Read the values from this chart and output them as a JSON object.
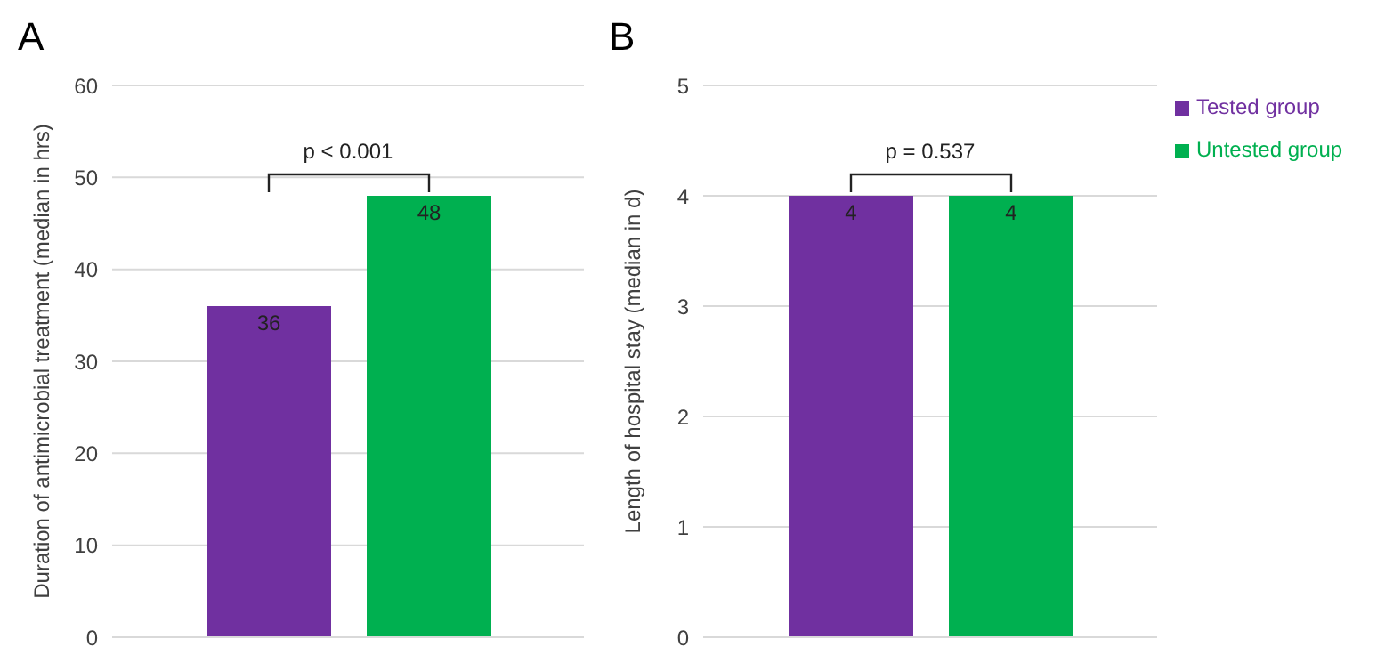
{
  "chart_data": [
    {
      "type": "bar",
      "title": "A",
      "ylabel": "Duration of antimicrobial treatment (median in hrs)",
      "categories": [
        null
      ],
      "series": [
        {
          "color": "#7030a0",
          "values": [
            36
          ]
        },
        {
          "color": "#00b050",
          "values": [
            48
          ]
        }
      ],
      "ylim": [
        0,
        60
      ],
      "yticks": [
        0,
        10,
        20,
        30,
        40,
        50,
        60
      ],
      "grid": "y",
      "data_labels": true,
      "legend": false,
      "annotations": [
        "p < 0.001"
      ]
    },
    {
      "type": "bar",
      "title": "B",
      "ylabel": "Length of hospital stay (median in d)",
      "categories": [
        null
      ],
      "series": [
        {
          "name": "Tested group",
          "color": "#7030a0",
          "values": [
            4
          ]
        },
        {
          "name": "Untested group",
          "color": "#00b050",
          "values": [
            4
          ]
        }
      ],
      "ylim": [
        0,
        5
      ],
      "yticks": [
        0,
        1,
        2,
        3,
        4,
        5
      ],
      "grid": "y",
      "data_labels": true,
      "legend": "top right",
      "annotations": [
        "p = 0.537"
      ]
    }
  ]
}
